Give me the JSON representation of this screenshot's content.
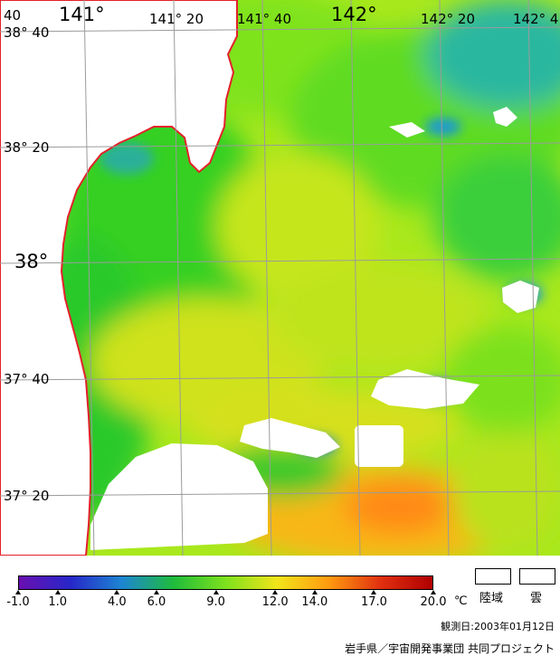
{
  "map": {
    "longitude_labels": [
      "141°",
      "141° 20",
      "141° 40",
      "142°",
      "142° 20",
      "142° 4"
    ],
    "latitude_labels": [
      "38° 40",
      "38° 20",
      "38°",
      "37° 40",
      "37° 20"
    ],
    "corner_label": "40",
    "colors": {
      "coastline": "#e3212b",
      "grid": "#9b9b9b",
      "land": "#ffffff",
      "cloud": "#ffffff"
    }
  },
  "scale": {
    "ticks": [
      "-1.0",
      "1.0",
      "4.0",
      "6.0",
      "9.0",
      "12.0",
      "14.0",
      "17.0",
      "20.0"
    ],
    "unit": "℃",
    "gradient_colors": [
      "#6a0fb0",
      "#2727c9",
      "#1d86d2",
      "#1fbc3b",
      "#7ee11d",
      "#f2e51a",
      "#ff9a10",
      "#e03010",
      "#b00000"
    ]
  },
  "legend": {
    "land_label": "陸域",
    "cloud_label": "雲"
  },
  "footer": {
    "observation_date": "観測日:2003年01月12日",
    "credit": "岩手県／宇宙開発事業団 共同プロジェクト"
  }
}
